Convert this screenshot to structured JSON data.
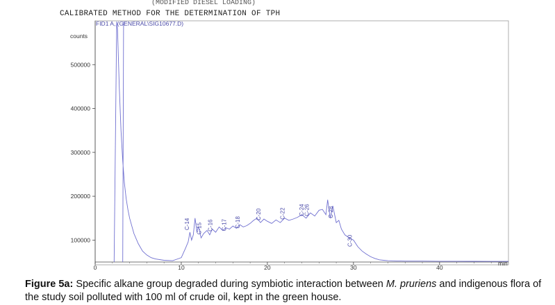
{
  "chart_data": {
    "type": "line",
    "title": "CALIBRATED METHOD FOR THE DETERMINATION OF TPH",
    "subtitle": "FID1 A, (GENERAL\\SIG10677.D)",
    "ylabel": "counts",
    "xlabel": "",
    "x_unit": "min",
    "xlim": [
      0,
      48
    ],
    "ylim": [
      50000,
      600000
    ],
    "x_ticks": [
      0,
      10,
      20,
      30,
      40
    ],
    "y_ticks": [
      100000,
      200000,
      300000,
      400000,
      500000
    ],
    "grid": false,
    "series": [
      {
        "x": [
          2.2,
          2.5,
          2.6,
          2.8,
          3.0,
          3.2,
          3.4,
          3.6,
          3.8,
          4.0,
          4.5,
          5.0,
          5.5,
          6.0,
          6.5,
          7.0,
          8.0,
          9.0,
          10.0,
          10.5,
          10.8,
          11.0,
          11.2,
          11.4,
          11.6,
          11.8,
          12.0,
          12.3,
          12.6,
          13.0,
          13.3,
          13.6,
          14.0,
          14.4,
          14.8,
          15.2,
          15.6,
          16.0,
          16.4,
          16.8,
          17.2,
          17.6,
          18.0,
          18.4,
          18.8,
          19.2,
          19.6,
          20.0,
          20.5,
          21.0,
          21.5,
          22.0,
          22.5,
          23.0,
          23.5,
          24.0,
          24.5,
          25.0,
          25.5,
          26.0,
          26.4,
          26.8,
          27.0,
          27.3,
          27.6,
          28.0,
          28.3,
          28.6,
          29.0,
          29.5,
          30.0,
          30.5,
          31.0,
          31.5,
          32.0,
          32.5,
          33.0,
          33.5,
          34.0,
          35.0,
          36.0,
          38.0,
          40.0,
          42.0,
          44.0,
          46.0,
          48.0
        ],
        "y": [
          50000,
          605000,
          580000,
          450000,
          350000,
          280000,
          230000,
          195000,
          170000,
          150000,
          115000,
          92000,
          75000,
          66000,
          60000,
          57000,
          54000,
          53000,
          60000,
          82000,
          96000,
          118000,
          100000,
          112000,
          150000,
          120000,
          130000,
          105000,
          115000,
          122000,
          112000,
          125000,
          118000,
          130000,
          122000,
          128000,
          125000,
          132000,
          127000,
          135000,
          130000,
          133000,
          138000,
          145000,
          150000,
          140000,
          148000,
          143000,
          138000,
          146000,
          140000,
          150000,
          145000,
          148000,
          152000,
          158000,
          150000,
          162000,
          155000,
          168000,
          170000,
          158000,
          192000,
          150000,
          178000,
          140000,
          145000,
          125000,
          112000,
          105000,
          100000,
          85000,
          75000,
          68000,
          62000,
          58000,
          55000,
          54000,
          53000,
          52500,
          52000,
          52000,
          51800,
          51700,
          51600,
          51500,
          51500
        ]
      }
    ],
    "peak_labels": [
      {
        "text": "C-14",
        "x": 10.9,
        "y": 118000
      },
      {
        "text": "C-15",
        "x": 12.3,
        "y": 108000
      },
      {
        "text": "C-16",
        "x": 13.6,
        "y": 115000
      },
      {
        "text": "C-17",
        "x": 15.2,
        "y": 116000
      },
      {
        "text": "C-18",
        "x": 16.8,
        "y": 122000
      },
      {
        "text": "C-20",
        "x": 19.2,
        "y": 140000
      },
      {
        "text": "C-22",
        "x": 22.0,
        "y": 142000
      },
      {
        "text": "C-24",
        "x": 24.2,
        "y": 150000
      },
      {
        "text": "C-26",
        "x": 24.8,
        "y": 150000
      },
      {
        "text": "C-28",
        "x": 27.6,
        "y": 145000
      },
      {
        "text": "C-30",
        "x": 29.8,
        "y": 80000
      }
    ]
  },
  "caption": {
    "label": "Figure 5a:",
    "text_before": " Specific alkane group degraded during symbiotic interaction between ",
    "species": "M. pruriens",
    "text_after": " and indigenous flora of the study soil polluted with 100 ml of crude oil, kept in the green house."
  },
  "header_fragment": "(MODIFIED DIESEL LOADING)"
}
